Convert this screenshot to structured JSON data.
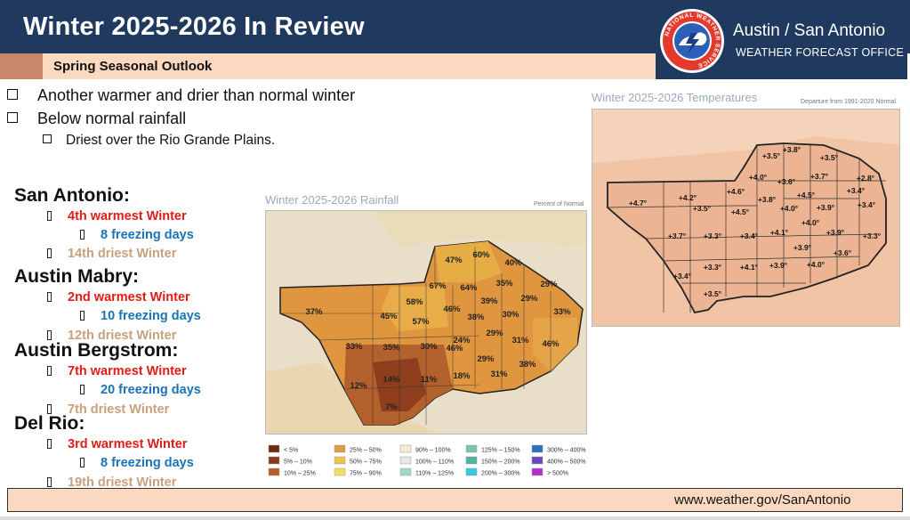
{
  "header": {
    "title": "Winter 2025-2026 In Review",
    "subtitle": "Spring Seasonal Outlook",
    "office_name": "Austin / San Antonio",
    "office_sub": "WEATHER FORECAST OFFICE",
    "logo_ring_text": "NATIONAL WEATHER SERVICE",
    "colors": {
      "navy": "#1f3a5e",
      "peach": "#fad9c0",
      "tab": "#c8896a"
    }
  },
  "bullets": [
    "Another warmer and drier than normal winter",
    "Below normal rainfall"
  ],
  "sub_bullets": [
    "Driest over the Rio Grande Plains."
  ],
  "cities": [
    {
      "name": "San Antonio:",
      "warm": "4th warmest Winter",
      "freeze": "8 freezing days",
      "dry": "14th driest Winter"
    },
    {
      "name": "Austin Mabry:",
      "warm": "2nd warmest Winter",
      "freeze": "10 freezing days",
      "dry": "12th driest Winter"
    },
    {
      "name": "Austin Bergstrom:",
      "warm": "7th warmest Winter",
      "freeze": "20 freezing days",
      "dry": "7th driest Winter"
    },
    {
      "name": "Del Rio:",
      "warm": "3rd warmest Winter",
      "freeze": "8 freezing days",
      "dry": "19th driest Winter"
    }
  ],
  "rain_map": {
    "title": "Winter 2025-2026 Rainfall",
    "note": "Percent of Normal",
    "labels": [
      "60%",
      "47%",
      "40%",
      "67%",
      "64%",
      "35%",
      "29%",
      "46%",
      "58%",
      "39%",
      "29%",
      "37%",
      "45%",
      "57%",
      "46%",
      "38%",
      "30%",
      "33%",
      "29%",
      "33%",
      "35%",
      "30%",
      "24%",
      "31%",
      "46%",
      "29%",
      "38%",
      "12%",
      "14%",
      "11%",
      "18%",
      "31%",
      "7%"
    ],
    "legend": [
      {
        "label": "< 5%",
        "color": "#6b2a12"
      },
      {
        "label": "5% – 10%",
        "color": "#8a3a1c"
      },
      {
        "label": "10% – 25%",
        "color": "#b65d27"
      },
      {
        "label": "25% – 50%",
        "color": "#e09a45"
      },
      {
        "label": "50% – 75%",
        "color": "#efc24e"
      },
      {
        "label": "75% – 90%",
        "color": "#f2df62"
      },
      {
        "label": "90% – 100%",
        "color": "#f3eccd"
      },
      {
        "label": "100% – 110%",
        "color": "#e6e6e3"
      },
      {
        "label": "110% – 125%",
        "color": "#a3d7c0"
      },
      {
        "label": "125% – 150%",
        "color": "#79c5b2"
      },
      {
        "label": "150% – 200%",
        "color": "#4fb2a3"
      },
      {
        "label": "200% – 300%",
        "color": "#33c8e4"
      },
      {
        "label": "300% – 400%",
        "color": "#2f6fbe"
      },
      {
        "label": "400% – 500%",
        "color": "#6a45c6"
      },
      {
        "label": "> 500%",
        "color": "#b52dcf"
      }
    ]
  },
  "temp_map": {
    "title": "Winter 2025-2026 Temperatures",
    "note": "Departure from 1991-2020 Normal",
    "labels": [
      "+3.8°",
      "+3.5°",
      "+3.5°",
      "+4.0°",
      "+3.6°",
      "+3.7°",
      "+2.8°",
      "+4.6°",
      "+4.2°",
      "+4.7°",
      "+3.8°",
      "+3.5°",
      "+3.4°",
      "+4.5°",
      "+4.5°",
      "+4.0°",
      "+3.9°",
      "+3.4°",
      "+4.0°",
      "+3.7°",
      "+3.3°",
      "+3.4°",
      "+4.1°",
      "+3.9°",
      "+3.3°",
      "+3.9°",
      "+3.6°",
      "+3.3°",
      "+4.1°",
      "+3.9°",
      "+4.0°",
      "+3.4°",
      "+3.5°"
    ]
  },
  "footer": {
    "url": "www.weather.gov/SanAntonio"
  }
}
